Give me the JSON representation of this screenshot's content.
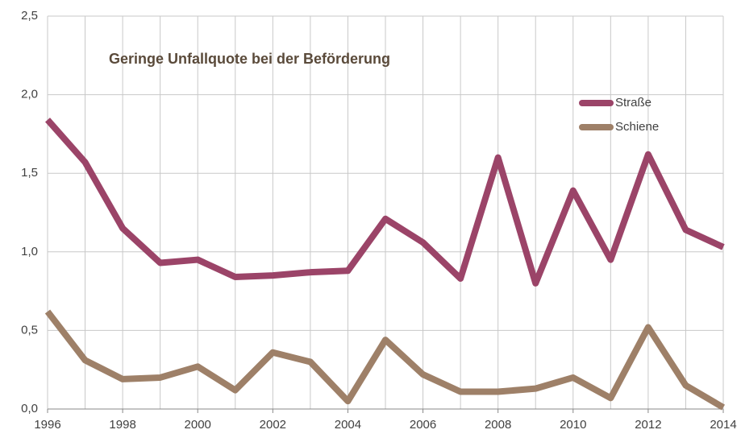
{
  "chart_data": {
    "type": "line",
    "title": "Geringe Unfallquote bei der Beförderung",
    "x": [
      1996,
      1997,
      1998,
      1999,
      2000,
      2001,
      2002,
      2003,
      2004,
      2005,
      2006,
      2007,
      2008,
      2009,
      2010,
      2011,
      2012,
      2013,
      2014
    ],
    "series": [
      {
        "name": "Straße",
        "color": "#9b4468",
        "values": [
          1.84,
          1.57,
          1.15,
          0.93,
          0.95,
          0.84,
          0.85,
          0.87,
          0.88,
          1.21,
          1.06,
          0.83,
          1.6,
          0.8,
          1.39,
          0.95,
          1.62,
          1.14,
          1.03
        ]
      },
      {
        "name": "Schiene",
        "color": "#9e8068",
        "values": [
          0.62,
          0.31,
          0.19,
          0.2,
          0.27,
          0.12,
          0.36,
          0.3,
          0.05,
          0.44,
          0.22,
          0.11,
          0.11,
          0.13,
          0.2,
          0.07,
          0.52,
          0.15,
          0.01
        ]
      }
    ],
    "xlim": [
      1996,
      2014
    ],
    "xticks": [
      1996,
      1998,
      2000,
      2002,
      2004,
      2006,
      2008,
      2010,
      2012,
      2014
    ],
    "ylim": [
      0,
      2.5
    ],
    "yticks": [
      {
        "value": 0,
        "label": "0,0"
      },
      {
        "value": 0.5,
        "label": "0,5"
      },
      {
        "value": 1,
        "label": "1,0"
      },
      {
        "value": 1.5,
        "label": "1,5"
      },
      {
        "value": 2,
        "label": "2,0"
      },
      {
        "value": 2.5,
        "label": "2,5"
      }
    ],
    "grid": true,
    "legend": "top-right"
  }
}
